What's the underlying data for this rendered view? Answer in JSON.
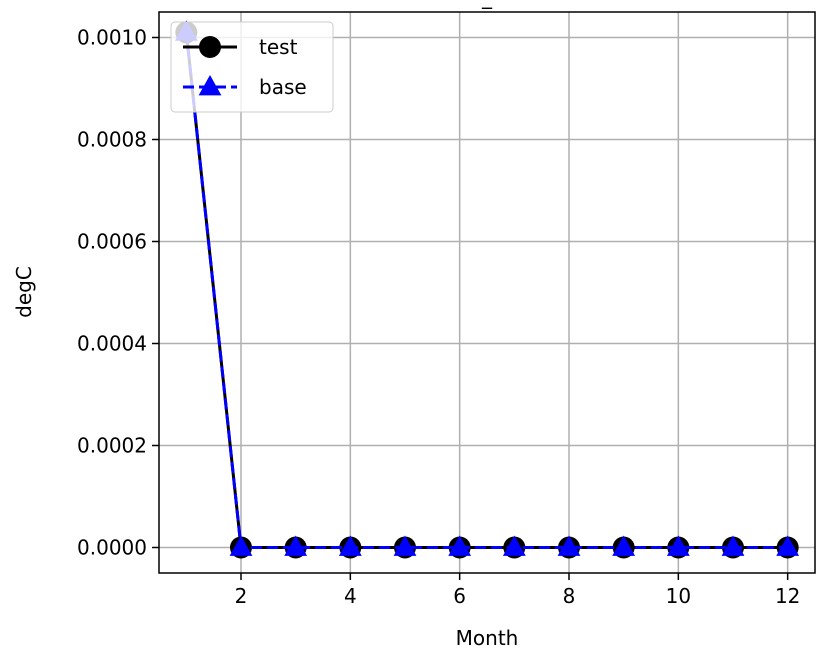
{
  "chart_data": {
    "type": "line",
    "title": "_",
    "xlabel": "Month",
    "ylabel": "degC",
    "xlim": [
      0.5,
      12.5
    ],
    "ylim": [
      -5e-05,
      0.00105
    ],
    "grid": true,
    "legend_position": "top-left",
    "x": [
      1,
      2,
      3,
      4,
      5,
      6,
      7,
      8,
      9,
      10,
      11,
      12
    ],
    "xticks": [
      2,
      4,
      6,
      8,
      10,
      12
    ],
    "xtick_labels": [
      "2",
      "4",
      "6",
      "8",
      "10",
      "12"
    ],
    "yticks": [
      0,
      0.0002,
      0.0004,
      0.0006,
      0.0008,
      0.001
    ],
    "ytick_labels": [
      "0.0000",
      "0.0002",
      "0.0004",
      "0.0006",
      "0.0008",
      "0.0010"
    ],
    "series": [
      {
        "name": "test",
        "color": "#000000",
        "linestyle": "solid",
        "marker": "circle",
        "values": [
          0.00101,
          0,
          0,
          0,
          0,
          0,
          0,
          0,
          0,
          0,
          0,
          0
        ]
      },
      {
        "name": "base",
        "color": "#0000ff",
        "linestyle": "dashed",
        "marker": "triangle",
        "values": [
          0.00101,
          0,
          0,
          0,
          0,
          0,
          0,
          0,
          0,
          0,
          0,
          0
        ]
      }
    ]
  }
}
